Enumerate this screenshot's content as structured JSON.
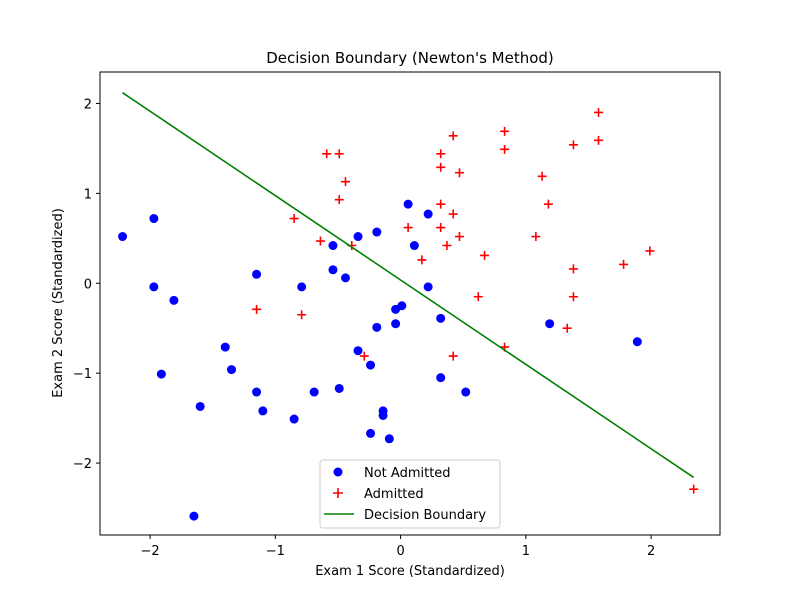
{
  "chart_data": {
    "type": "scatter",
    "title": "Decision Boundary (Newton's Method)",
    "xlabel": "Exam 1 Score (Standardized)",
    "ylabel": "Exam 2 Score (Standardized)",
    "xlim": [
      -2.4,
      2.55
    ],
    "ylim": [
      -2.8,
      2.35
    ],
    "xticks": [
      -2,
      -1,
      0,
      1,
      2
    ],
    "yticks": [
      -2,
      -1,
      0,
      1,
      2
    ],
    "grid": false,
    "legend_position": "bottom-center",
    "series": [
      {
        "name": "Not Admitted",
        "marker": "circle",
        "color": "#0000ff",
        "points": [
          [
            -2.22,
            0.52
          ],
          [
            -1.97,
            0.72
          ],
          [
            -1.97,
            -0.04
          ],
          [
            -1.81,
            -0.19
          ],
          [
            -1.91,
            -1.01
          ],
          [
            -1.65,
            -2.59
          ],
          [
            -1.6,
            -1.37
          ],
          [
            -1.4,
            -0.71
          ],
          [
            -1.35,
            -0.96
          ],
          [
            -1.15,
            0.1
          ],
          [
            -1.15,
            -1.21
          ],
          [
            -1.1,
            -1.42
          ],
          [
            -0.85,
            -1.51
          ],
          [
            -0.79,
            -0.04
          ],
          [
            -0.69,
            -1.21
          ],
          [
            -0.54,
            0.42
          ],
          [
            -0.54,
            0.15
          ],
          [
            -0.49,
            -1.17
          ],
          [
            -0.44,
            0.06
          ],
          [
            -0.34,
            0.52
          ],
          [
            -0.34,
            -0.75
          ],
          [
            -0.24,
            -0.91
          ],
          [
            -0.24,
            -1.67
          ],
          [
            -0.19,
            0.57
          ],
          [
            -0.19,
            -0.49
          ],
          [
            -0.14,
            -1.42
          ],
          [
            -0.14,
            -1.47
          ],
          [
            -0.09,
            -1.73
          ],
          [
            -0.04,
            -0.29
          ],
          [
            -0.04,
            -0.45
          ],
          [
            0.01,
            -0.25
          ],
          [
            0.06,
            0.88
          ],
          [
            0.11,
            0.42
          ],
          [
            0.22,
            0.77
          ],
          [
            0.22,
            -0.04
          ],
          [
            0.32,
            -0.39
          ],
          [
            0.32,
            -1.05
          ],
          [
            0.52,
            -1.21
          ],
          [
            1.19,
            -0.45
          ],
          [
            1.89,
            -0.65
          ]
        ]
      },
      {
        "name": "Admitted",
        "marker": "plus",
        "color": "#ff0000",
        "points": [
          [
            -1.15,
            -0.29
          ],
          [
            -0.85,
            0.72
          ],
          [
            -0.79,
            -0.35
          ],
          [
            -0.64,
            0.47
          ],
          [
            -0.59,
            1.44
          ],
          [
            -0.49,
            1.44
          ],
          [
            -0.49,
            0.93
          ],
          [
            -0.44,
            1.13
          ],
          [
            -0.39,
            0.42
          ],
          [
            -0.29,
            -0.81
          ],
          [
            0.06,
            0.62
          ],
          [
            0.17,
            0.26
          ],
          [
            0.32,
            1.44
          ],
          [
            0.32,
            1.29
          ],
          [
            0.32,
            0.88
          ],
          [
            0.32,
            0.62
          ],
          [
            0.37,
            0.42
          ],
          [
            0.42,
            1.64
          ],
          [
            0.42,
            0.77
          ],
          [
            0.42,
            -0.81
          ],
          [
            0.47,
            1.23
          ],
          [
            0.47,
            0.52
          ],
          [
            0.62,
            -0.15
          ],
          [
            0.67,
            0.31
          ],
          [
            0.83,
            1.69
          ],
          [
            0.83,
            1.49
          ],
          [
            0.83,
            -0.71
          ],
          [
            1.08,
            0.52
          ],
          [
            1.13,
            1.19
          ],
          [
            1.18,
            0.88
          ],
          [
            1.33,
            -0.5
          ],
          [
            1.38,
            1.54
          ],
          [
            1.38,
            0.16
          ],
          [
            1.38,
            -0.15
          ],
          [
            1.58,
            1.9
          ],
          [
            1.58,
            1.59
          ],
          [
            1.78,
            0.21
          ],
          [
            1.99,
            0.36
          ],
          [
            2.34,
            -2.29
          ]
        ]
      },
      {
        "name": "Decision Boundary",
        "marker": "line",
        "color": "#008000",
        "points": [
          [
            -2.22,
            2.12
          ],
          [
            2.34,
            -2.16
          ]
        ]
      }
    ]
  }
}
